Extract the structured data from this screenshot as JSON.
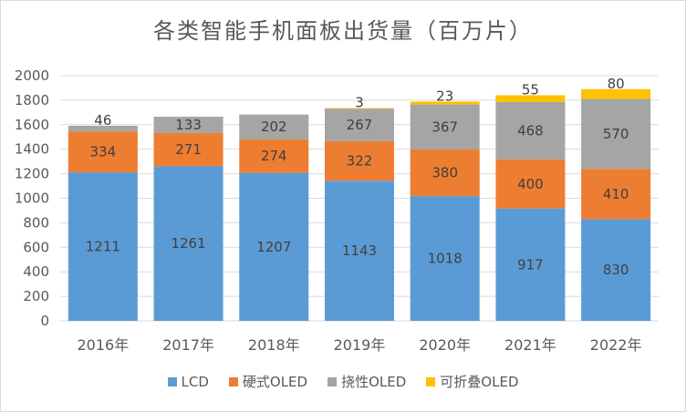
{
  "chart_data": {
    "type": "bar",
    "stacked": true,
    "title": "各类智能手机面板出货量（百万片）",
    "xlabel": "",
    "ylabel": "",
    "ylim": [
      0,
      2000
    ],
    "yticks": [
      0,
      200,
      400,
      600,
      800,
      1000,
      1200,
      1400,
      1600,
      1800,
      2000
    ],
    "ytick_labels": [
      "0",
      "200",
      "400",
      "600",
      "800",
      "1000",
      "1200",
      "1400",
      "1600",
      "1800",
      "2000"
    ],
    "grid": true,
    "legend_position": "bottom",
    "categories": [
      "2016年",
      "2017年",
      "2018年",
      "2019年",
      "2020年",
      "2021年",
      "2022年"
    ],
    "series": [
      {
        "name": "LCD",
        "color": "#5b9bd5",
        "values": [
          1211,
          1261,
          1207,
          1143,
          1018,
          917,
          830
        ],
        "labels": [
          "1211",
          "1261",
          "1207",
          "1143",
          "1018",
          "917",
          "830"
        ]
      },
      {
        "name": "硬式OLED",
        "color": "#ed7d31",
        "values": [
          334,
          271,
          274,
          322,
          380,
          400,
          410
        ],
        "labels": [
          "334",
          "271",
          "274",
          "322",
          "380",
          "400",
          "410"
        ]
      },
      {
        "name": "挠性OLED",
        "color": "#a5a5a5",
        "values": [
          46,
          133,
          202,
          267,
          367,
          468,
          570
        ],
        "labels": [
          "46",
          "133",
          "202",
          "267",
          "367",
          "468",
          "570"
        ]
      },
      {
        "name": "可折叠OLED",
        "color": "#ffc000",
        "values": [
          0,
          0,
          0,
          3,
          23,
          55,
          80
        ],
        "labels": [
          "",
          "",
          "",
          "3",
          "23",
          "55",
          "80"
        ]
      }
    ]
  }
}
